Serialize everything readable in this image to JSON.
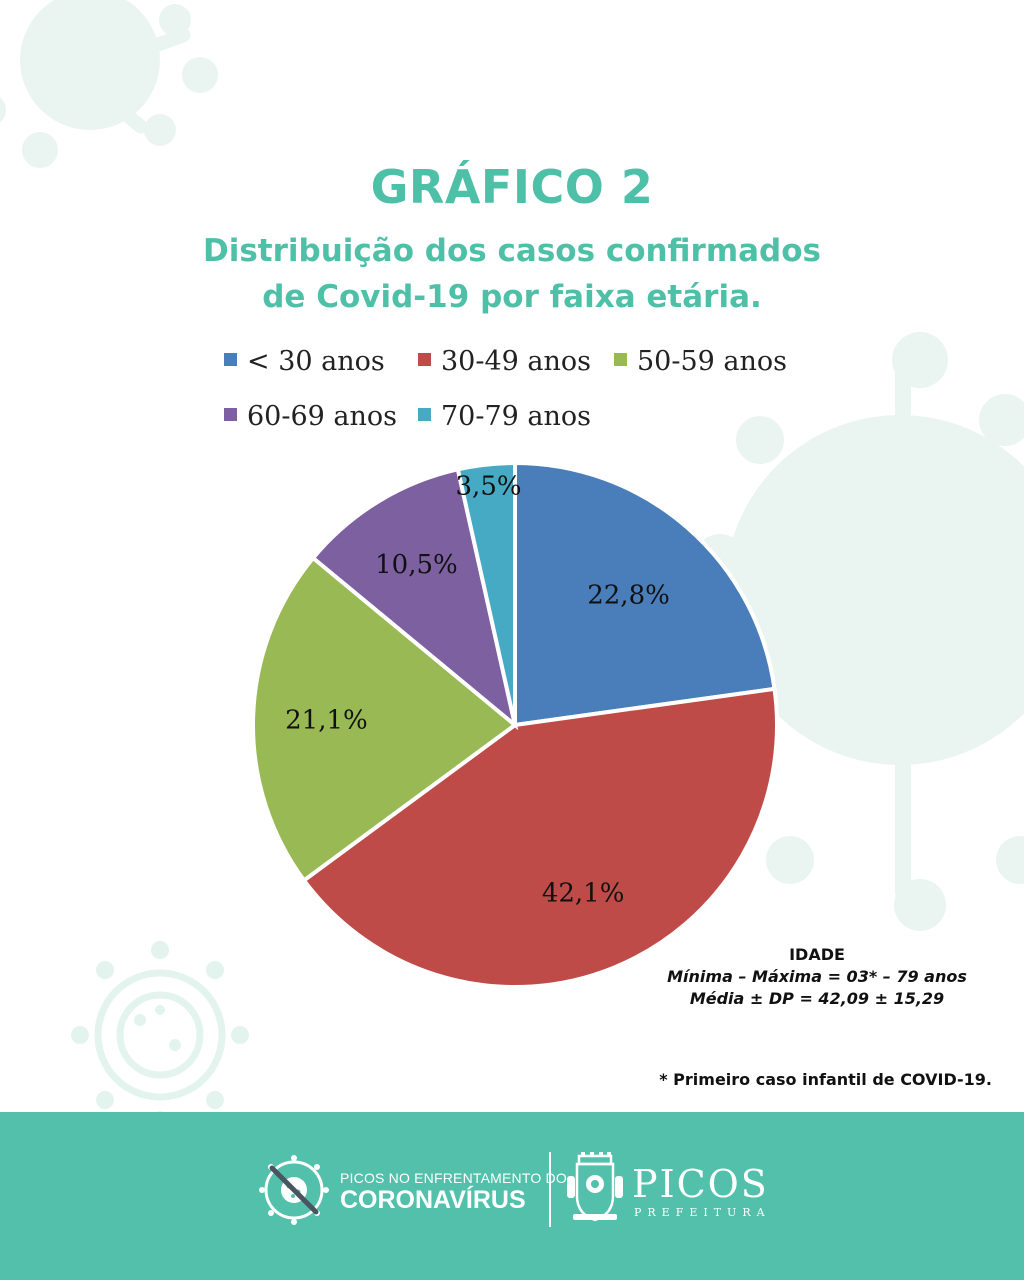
{
  "header": {
    "title": "GRÁFICO 2",
    "subtitle_line1": "Distribuição dos casos confirmados",
    "subtitle_line2": "de Covid-19 por faixa etária."
  },
  "chart_data": {
    "type": "pie",
    "categories": [
      "< 30 anos",
      "30-49 anos",
      "50-59 anos",
      "60-69 anos",
      "70-79 anos"
    ],
    "values": [
      22.8,
      42.1,
      21.1,
      10.5,
      3.5
    ],
    "value_labels": [
      "22,8%",
      "42,1%",
      "21,1%",
      "10,5%",
      "3,5%"
    ],
    "colors": [
      "#4a7ebb",
      "#be4b48",
      "#98b954",
      "#7d60a0",
      "#46aac5"
    ],
    "legend_position": "top"
  },
  "stats": {
    "title": "IDADE",
    "min_max": "Mínima – Máxima = 03* – 79 anos",
    "mean_sd": "Média ± DP = 42,09 ± 15,29"
  },
  "footnote": "* Primeiro caso infantil de COVID-19.",
  "footer": {
    "left_logo_line1": "PICOS NO ENFRENTAMENTO DO",
    "left_logo_line2": "CORONAVÍRUS",
    "right_logo_line1": "PICOS",
    "right_logo_line2": "PREFEITURA",
    "left_logo_icon": "virus-crossed-icon",
    "right_logo_icon": "city-crest-icon"
  }
}
